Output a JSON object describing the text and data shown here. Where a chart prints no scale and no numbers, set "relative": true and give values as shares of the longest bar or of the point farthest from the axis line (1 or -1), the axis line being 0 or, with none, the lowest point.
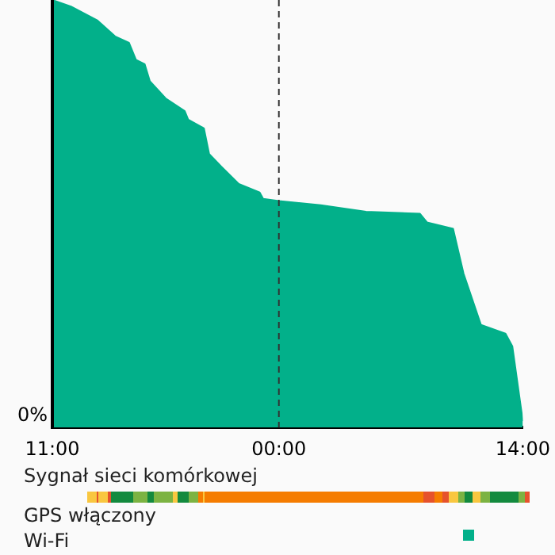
{
  "chart_data": {
    "type": "area",
    "relative": true,
    "x": [
      "--01-01T11:00",
      "--01-01T12:04",
      "--01-01T13:36",
      "--01-01T14:36",
      "--01-01T15:24",
      "--01-01T15:48",
      "--01-01T16:18",
      "--01-01T16:36",
      "--01-01T17:30",
      "--01-01T18:36",
      "--01-01T18:48",
      "--01-01T19:42",
      "--01-01T20:00",
      "--01-01T20:42",
      "--01-01T21:42",
      "--01-01T22:54",
      "--01-01T23:06",
      "--01-02T00:00",
      "--01-02T02:24",
      "--01-02T05:00",
      "--01-02T08:06",
      "--01-02T08:30",
      "--01-02T10:00",
      "--01-02T10:36",
      "--01-02T11:36",
      "--01-02T13:00",
      "--01-02T13:24",
      "--01-02T14:00"
    ],
    "values": [
      1,
      0.985,
      0.952,
      0.915,
      0.9,
      0.86,
      0.85,
      0.81,
      0.77,
      0.74,
      0.72,
      0.7,
      0.64,
      0.61,
      0.57,
      0.55,
      0.535,
      0.53,
      0.52,
      0.505,
      0.5,
      0.48,
      0.465,
      0.36,
      0.24,
      0.22,
      0.19,
      0.015
    ],
    "color": "#02b08a",
    "xlim": [
      "--01-01T11:00",
      "--01-02T14:00"
    ],
    "xticks": [
      {
        "value": "--01-01T11:00",
        "label": "11:00"
      },
      {
        "value": "--01-02T00:00",
        "label": "00:00"
      },
      {
        "value": "--01-02T14:00",
        "label": "14:00"
      }
    ],
    "grid": false,
    "legend": false,
    "ref_lines": [
      {
        "axis": "x",
        "value": "--01-02T00:00",
        "line_style": "dashed",
        "color": "#333333"
      }
    ],
    "annotations": [
      "0%",
      "Sygnał sieci komórkowej",
      "GPS włączony",
      "Wi-Fi"
    ]
  }
}
